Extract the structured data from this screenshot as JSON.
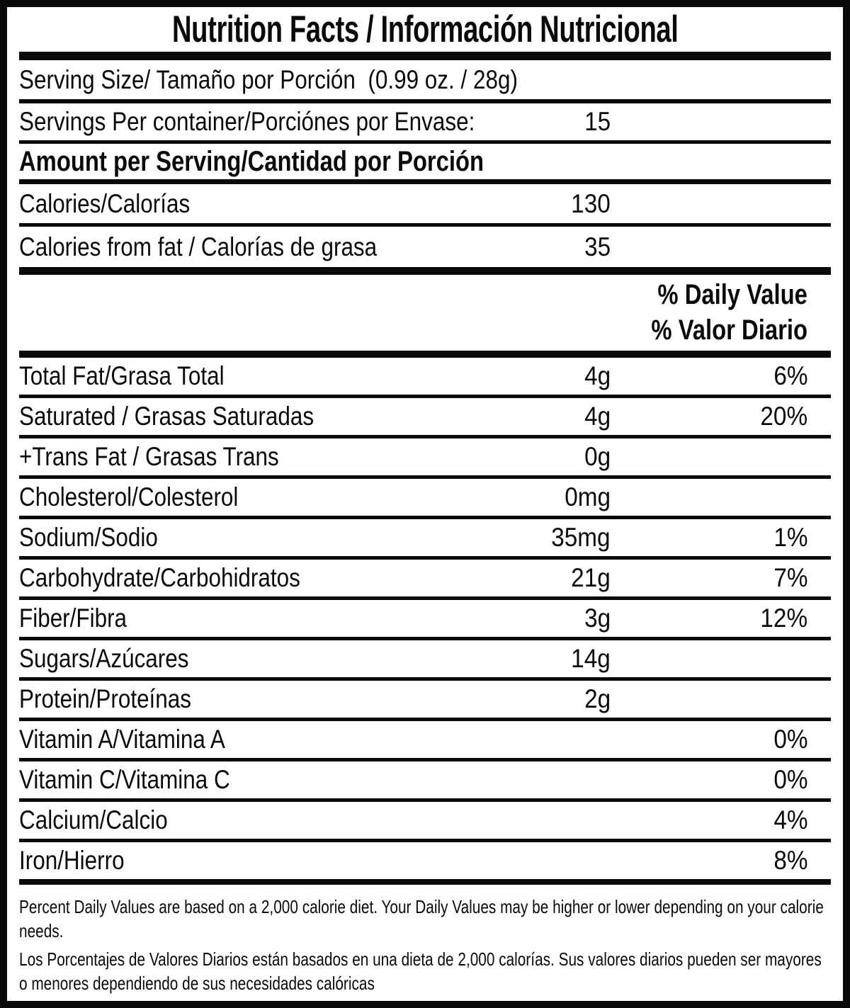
{
  "title": "Nutrition Facts / Información Nutricional",
  "serving": {
    "size_line": "Serving Size/ Tamaño por Porción  (0.99 oz. / 28g)",
    "per_container_label": "Servings Per container/Porciónes por Envase:",
    "per_container_value": "15"
  },
  "amount_header": "Amount per Serving/Cantidad por Porción",
  "calories": {
    "label": "Calories/Calorías",
    "value": "130"
  },
  "calories_from_fat": {
    "label": "Calories from fat / Calorías de grasa",
    "value": "35"
  },
  "daily_value_header": {
    "en": "% Daily Value",
    "es": "% Valor Diario"
  },
  "nutrients": [
    {
      "label": "Total Fat/Grasa Total",
      "amount": "4g",
      "percent": "6%"
    },
    {
      "label": "Saturated / Grasas Saturadas",
      "amount": "4g",
      "percent": "20%"
    },
    {
      "label": "+Trans Fat / Grasas Trans",
      "amount": "0g",
      "percent": ""
    },
    {
      "label": "Cholesterol/Colesterol",
      "amount": "0mg",
      "percent": ""
    },
    {
      "label": "Sodium/Sodio",
      "amount": "35mg",
      "percent": "1%"
    },
    {
      "label": "Carbohydrate/Carbohidratos",
      "amount": "21g",
      "percent": "7%"
    },
    {
      "label": "Fiber/Fibra",
      "amount": "3g",
      "percent": "12%"
    },
    {
      "label": "Sugars/Azúcares",
      "amount": "14g",
      "percent": ""
    },
    {
      "label": "Protein/Proteínas",
      "amount": "2g",
      "percent": ""
    },
    {
      "label": "Vitamin A/Vitamina A",
      "amount": "",
      "percent": "0%"
    },
    {
      "label": "Vitamin C/Vitamina C",
      "amount": "",
      "percent": "0%"
    },
    {
      "label": "Calcium/Calcio",
      "amount": "",
      "percent": "4%"
    },
    {
      "label": "Iron/Hierro",
      "amount": "",
      "percent": "8%"
    }
  ],
  "footnotes": {
    "en": "Percent Daily Values are based on a 2,000 calorie diet. Your Daily Values may be higher or lower depending on your calorie needs.",
    "es": "Los Porcentajes de Valores Diarios están basados en una dieta de 2,000 calorías. Sus valores diarios pueden ser mayores o menores dependiendo de sus necesidades calóricas"
  },
  "colors": {
    "ink": "#0a0a0a",
    "background": "#ffffff"
  }
}
